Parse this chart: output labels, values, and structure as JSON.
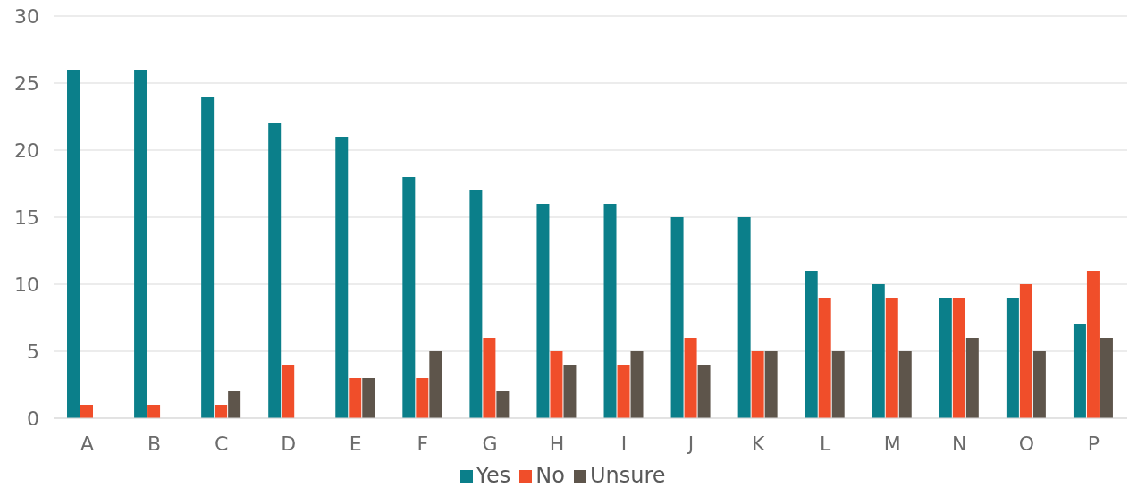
{
  "chart_data": {
    "type": "bar",
    "categories": [
      "A",
      "B",
      "C",
      "D",
      "E",
      "F",
      "G",
      "H",
      "I",
      "J",
      "K",
      "L",
      "M",
      "N",
      "O",
      "P"
    ],
    "series": [
      {
        "name": "Yes",
        "color": "#0b7f8a",
        "values": [
          26,
          26,
          24,
          22,
          21,
          18,
          17,
          16,
          16,
          15,
          15,
          11,
          10,
          9,
          9,
          7
        ]
      },
      {
        "name": "No",
        "color": "#f04e2a",
        "values": [
          1,
          1,
          1,
          4,
          3,
          3,
          6,
          5,
          4,
          6,
          5,
          9,
          9,
          9,
          10,
          11
        ]
      },
      {
        "name": "Unsure",
        "color": "#5e554b",
        "values": [
          0,
          0,
          2,
          0,
          3,
          5,
          2,
          4,
          5,
          4,
          5,
          5,
          5,
          6,
          5,
          6
        ]
      }
    ],
    "ylim": [
      0,
      30
    ],
    "yticks": [
      0,
      5,
      10,
      15,
      20,
      25,
      30
    ],
    "grid": "y",
    "legend": "bottom"
  }
}
